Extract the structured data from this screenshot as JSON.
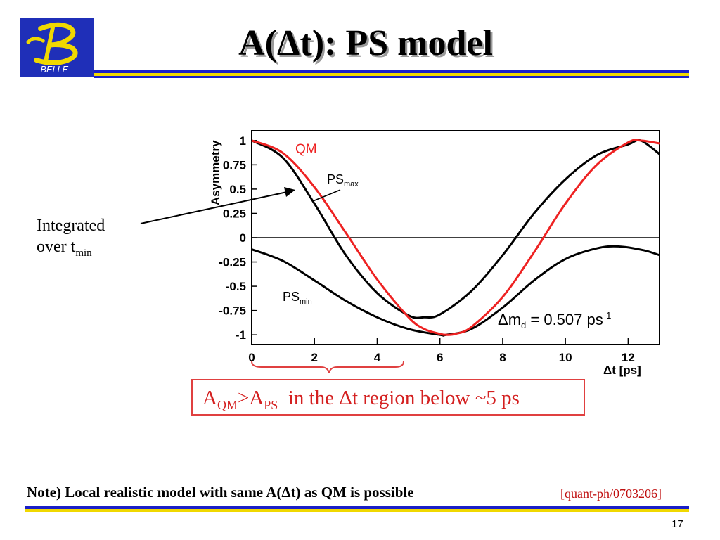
{
  "slide": {
    "title": "A(Δt): PS model",
    "logo_text": "BELLE",
    "page_number": "17"
  },
  "annotation": {
    "line1": "Integrated",
    "line2_main": "over t",
    "line2_sub": "min"
  },
  "conclusion": {
    "a": "A",
    "a_sub": "QM",
    "gt": ">A",
    "b_sub": "PS",
    "rest": "  in the Δt region below ~5 ps"
  },
  "note": {
    "text": "Note) Local realistic model with same A(Δt) as QM is possible",
    "reference": "[quant-ph/0703206]"
  },
  "colors": {
    "title_bar_blue": "#1a1fc8",
    "title_bar_yellow": "#f0d800",
    "qm_curve": "#ee2222",
    "ps_curves": "#000000",
    "reference_text": "#c01010",
    "box_border": "#e04040"
  },
  "chart_data": {
    "type": "line",
    "xlabel": "Δt [ps]",
    "ylabel": "Asymmetry",
    "xlim": [
      0,
      13
    ],
    "ylim": [
      -1.1,
      1.1
    ],
    "xticks": [
      "0",
      "2",
      "4",
      "6",
      "8",
      "10",
      "12"
    ],
    "yticks": [
      "1",
      "0.75",
      "0.5",
      "0.25",
      "0",
      "-0.25",
      "-0.5",
      "-0.75",
      "-1"
    ],
    "annotation": "Δm",
    "annotation_sub": "d",
    "annotation_value": " = 0.507 ps",
    "annotation_sup": "-1",
    "series": [
      {
        "name": "QM",
        "color": "#ee2222",
        "x": [
          0,
          1,
          2,
          3,
          4,
          5,
          5.5,
          6,
          6.2,
          6.5,
          7,
          8,
          9,
          10,
          11,
          12,
          12.4,
          13
        ],
        "y": [
          1,
          0.87,
          0.52,
          0.05,
          -0.43,
          -0.82,
          -0.94,
          -0.99,
          -1,
          -0.99,
          -0.92,
          -0.61,
          -0.15,
          0.35,
          0.75,
          0.98,
          1,
          0.97
        ]
      },
      {
        "name": "PS",
        "name_sub": "max",
        "color": "#000000",
        "x": [
          0,
          1,
          2,
          3,
          4,
          5,
          5.5,
          6,
          7,
          8,
          9,
          10,
          11,
          12,
          12.4,
          13
        ],
        "y": [
          1,
          0.82,
          0.35,
          -0.18,
          -0.57,
          -0.8,
          -0.82,
          -0.79,
          -0.55,
          -0.18,
          0.25,
          0.6,
          0.85,
          0.96,
          1,
          0.86
        ]
      },
      {
        "name": "PS",
        "name_sub": "min",
        "color": "#000000",
        "x": [
          0,
          1,
          2,
          3,
          4,
          5,
          6,
          6.2,
          7,
          8,
          9,
          10,
          11,
          11.7,
          12.5,
          13
        ],
        "y": [
          -0.12,
          -0.24,
          -0.44,
          -0.65,
          -0.82,
          -0.94,
          -1,
          -1,
          -0.94,
          -0.72,
          -0.44,
          -0.22,
          -0.11,
          -0.09,
          -0.13,
          -0.18
        ]
      }
    ]
  }
}
